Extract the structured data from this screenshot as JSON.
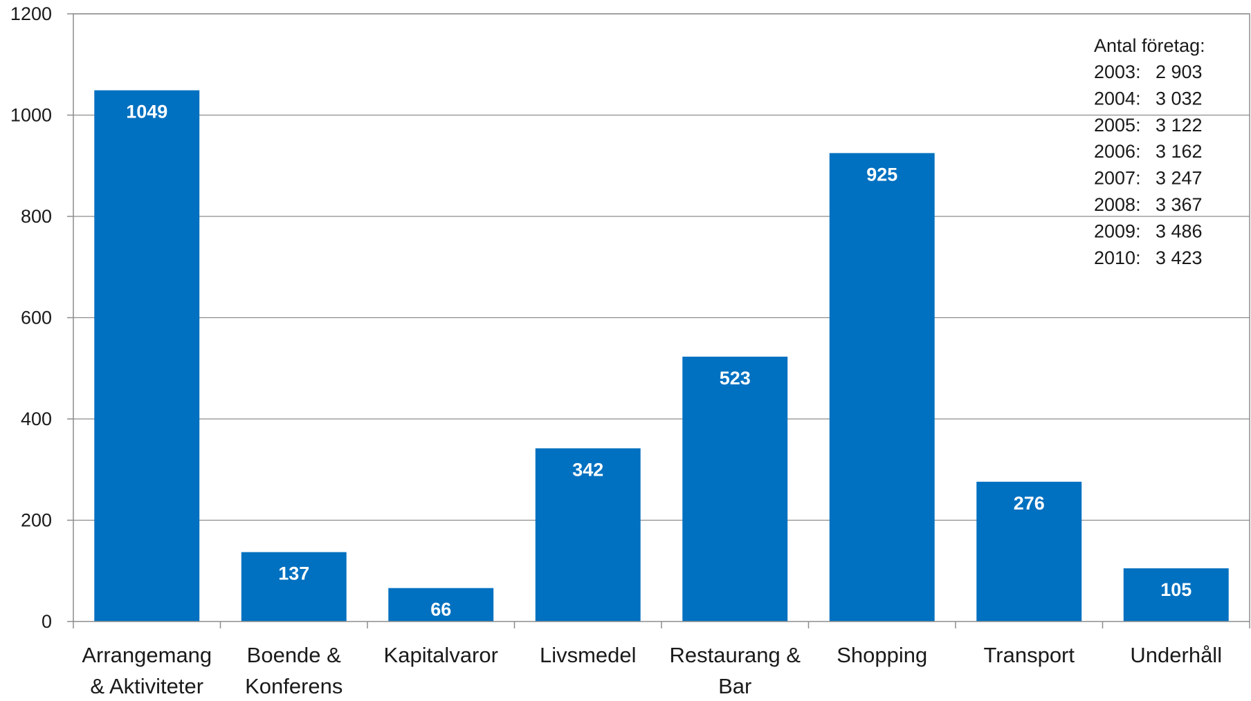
{
  "chart_data": {
    "type": "bar",
    "categories": [
      [
        "Arrangemang",
        "& Aktiviteter"
      ],
      [
        "Boende &",
        "Konferens"
      ],
      [
        "Kapitalvaror"
      ],
      [
        "Livsmedel"
      ],
      [
        "Restaurang &",
        "Bar"
      ],
      [
        "Shopping"
      ],
      [
        "Transport"
      ],
      [
        "Underhåll"
      ]
    ],
    "values": [
      1049,
      137,
      66,
      342,
      523,
      925,
      276,
      105
    ],
    "data_labels": [
      "1049",
      "137",
      "66",
      "342",
      "523",
      "925",
      "276",
      "105"
    ],
    "ylim": [
      0,
      1200
    ],
    "yticks": [
      0,
      200,
      400,
      600,
      800,
      1000,
      1200
    ],
    "grid": true,
    "legend": "none",
    "bar_color": "#0070C0",
    "annotation": {
      "title": "Antal företag:",
      "rows": [
        {
          "year": "2003:",
          "value": "2 903"
        },
        {
          "year": "2004:",
          "value": "3 032"
        },
        {
          "year": "2005:",
          "value": "3 122"
        },
        {
          "year": "2006:",
          "value": "3 162"
        },
        {
          "year": "2007:",
          "value": "3 247"
        },
        {
          "year": "2008:",
          "value": "3 367"
        },
        {
          "year": "2009:",
          "value": "3 486"
        },
        {
          "year": "2010:",
          "value": "3 423"
        }
      ]
    }
  }
}
